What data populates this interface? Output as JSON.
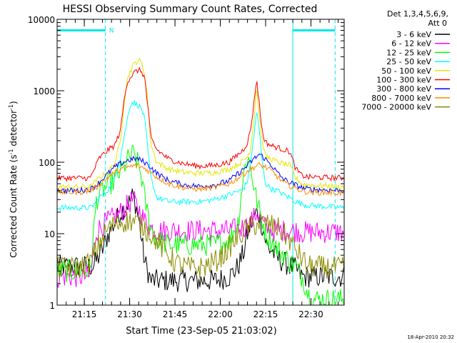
{
  "chart_data": {
    "type": "line",
    "title": "HESSI Observing Summary Count Rates, Corrected",
    "xlabel": "Start Time (23-Sep-05 21:03:02)",
    "ylabel_main": "Corrected Count Rate (s",
    "ylabel_sup1": "-1",
    "ylabel_mid": " detector",
    "ylabel_sup2": "-1",
    "ylabel_end": ")",
    "yscale": "log",
    "ylim": [
      1,
      10000
    ],
    "y_ticks": [
      {
        "value": 1,
        "label": "1"
      },
      {
        "value": 10,
        "label": "10"
      },
      {
        "value": 100,
        "label": "100"
      },
      {
        "value": 1000,
        "label": "1000"
      },
      {
        "value": 10000,
        "label": "10000"
      }
    ],
    "xlim": [
      3,
      98
    ],
    "x_ticks": [
      {
        "value": 12,
        "label": "21:15"
      },
      {
        "value": 27,
        "label": "21:30"
      },
      {
        "value": 42,
        "label": "21:45"
      },
      {
        "value": 57,
        "label": "22:00"
      },
      {
        "value": 72,
        "label": "22:15"
      },
      {
        "value": 87,
        "label": "22:30"
      }
    ],
    "night_bars": [
      {
        "x_start": 3,
        "x_end": 19,
        "y": 7000,
        "label": "N"
      },
      {
        "x_start": 81,
        "x_end": 95,
        "y": 7000,
        "label": ""
      }
    ],
    "vlines_solid": [
      3,
      81
    ],
    "vlines_dashed": [
      19,
      95
    ],
    "vline_color": "#00e6e6",
    "legend_header_1": "Det 1,3,4,5,6,9,",
    "legend_header_2": "Att 0",
    "legend_position": "right",
    "series": [
      {
        "name": "3 - 6 keV",
        "color": "#000000",
        "x": [
          15,
          18,
          20,
          22,
          24,
          26,
          27,
          28,
          29,
          30,
          31,
          32,
          33,
          34,
          36,
          40,
          45,
          50,
          55,
          60,
          63,
          65,
          66,
          67,
          68,
          69,
          70,
          71,
          72,
          73,
          74,
          75,
          76,
          78,
          80,
          82,
          84
        ],
        "y": [
          3.5,
          6,
          10,
          14,
          20,
          25,
          28,
          34,
          26,
          16,
          8,
          4,
          3,
          2.2,
          2.2,
          2.2,
          2.2,
          2.2,
          2.2,
          2.5,
          3.5,
          6,
          10,
          13,
          16,
          20,
          18,
          12,
          8,
          6,
          6,
          5,
          4.5,
          4,
          3.5,
          3.2,
          2.5
        ]
      },
      {
        "name": "6 - 12 keV",
        "color": "#ff00ff",
        "x": [
          3,
          14,
          16,
          18,
          20,
          22,
          24,
          26,
          28,
          30,
          32,
          34,
          36,
          40,
          45,
          50,
          55,
          60,
          62,
          64,
          66,
          68,
          69,
          70,
          71,
          72,
          74,
          76,
          78,
          80,
          82,
          84
        ],
        "y": [
          2.5,
          2.5,
          11,
          13,
          15,
          17,
          20,
          24,
          30,
          22,
          15,
          12,
          11,
          11,
          11,
          11,
          11,
          11,
          11.5,
          12,
          13,
          16,
          20,
          18,
          14,
          12,
          11,
          11,
          11,
          11,
          11,
          10.5
        ]
      },
      {
        "name": "12 - 25 keV",
        "color": "#00ff00",
        "x": [
          3,
          14,
          16,
          18,
          20,
          22,
          24,
          26,
          27,
          28,
          29,
          30,
          31,
          32,
          34,
          36,
          40,
          45,
          50,
          55,
          60,
          63,
          64,
          65,
          66,
          67,
          68,
          69,
          70,
          71,
          72,
          74,
          76,
          78,
          80,
          82,
          84,
          85,
          86,
          87
        ],
        "y": [
          3,
          3,
          30,
          40,
          48,
          55,
          75,
          100,
          120,
          130,
          110,
          90,
          60,
          30,
          12,
          8,
          7,
          7,
          7,
          7,
          8,
          15,
          40,
          80,
          120,
          90,
          50,
          30,
          20,
          15,
          10,
          8,
          6,
          5,
          4,
          3.5,
          2.5,
          2,
          1.5,
          1.2
        ]
      },
      {
        "name": "25 - 50 keV",
        "color": "#00ffff",
        "x": [
          3,
          14,
          15,
          17,
          20,
          22,
          24,
          26,
          27,
          28,
          29,
          30,
          31,
          32,
          33,
          34,
          36,
          40,
          45,
          50,
          55,
          60,
          62,
          64,
          65,
          66,
          67,
          68,
          69,
          70,
          71,
          72,
          74,
          76,
          78,
          80,
          82,
          84,
          86,
          98
        ],
        "y": [
          23,
          23,
          25,
          32,
          42,
          60,
          120,
          350,
          600,
          700,
          650,
          620,
          550,
          400,
          150,
          60,
          32,
          28,
          28,
          28,
          30,
          35,
          38,
          40,
          45,
          55,
          100,
          200,
          550,
          250,
          90,
          50,
          42,
          40,
          35,
          32,
          28,
          26,
          25,
          23
        ]
      },
      {
        "name": "50 - 100 keV",
        "color": "#e6e600",
        "x": [
          3,
          14,
          15,
          17,
          20,
          22,
          24,
          25,
          26,
          27,
          28,
          29,
          30,
          31,
          32,
          33,
          34,
          36,
          40,
          45,
          50,
          55,
          60,
          62,
          64,
          65,
          66,
          67,
          68,
          69,
          70,
          71,
          72,
          74,
          76,
          78,
          80,
          82,
          84,
          86,
          98
        ],
        "y": [
          45,
          45,
          50,
          60,
          75,
          95,
          200,
          600,
          1300,
          1800,
          2200,
          2500,
          2700,
          2400,
          1700,
          700,
          180,
          100,
          80,
          72,
          70,
          72,
          80,
          90,
          100,
          110,
          120,
          150,
          350,
          1200,
          400,
          180,
          120,
          110,
          100,
          95,
          90,
          60,
          50,
          48,
          45
        ]
      },
      {
        "name": "100 - 300 keV",
        "color": "#ff0000",
        "x": [
          3,
          14,
          15,
          17,
          20,
          22,
          24,
          25,
          26,
          27,
          28,
          29,
          30,
          31,
          32,
          33,
          34,
          36,
          40,
          45,
          50,
          55,
          60,
          62,
          64,
          65,
          66,
          67,
          68,
          69,
          70,
          71,
          72,
          74,
          76,
          78,
          80,
          82,
          84,
          86,
          98
        ],
        "y": [
          60,
          60,
          75,
          115,
          150,
          170,
          280,
          650,
          1250,
          1500,
          1700,
          1850,
          1950,
          1850,
          1500,
          600,
          220,
          150,
          110,
          95,
          88,
          90,
          100,
          120,
          140,
          160,
          190,
          280,
          600,
          1500,
          600,
          250,
          190,
          170,
          160,
          150,
          140,
          80,
          65,
          62,
          60
        ]
      },
      {
        "name": "300 - 800 keV",
        "color": "#0000ff",
        "x": [
          3,
          10,
          14,
          16,
          18,
          20,
          22,
          24,
          26,
          28,
          29,
          30,
          32,
          34,
          36,
          40,
          45,
          50,
          55,
          60,
          62,
          64,
          66,
          68,
          70,
          72,
          74,
          76,
          78,
          80,
          82,
          84,
          86,
          98
        ],
        "y": [
          40,
          40,
          42,
          48,
          58,
          70,
          85,
          95,
          105,
          110,
          112,
          110,
          100,
          85,
          70,
          55,
          48,
          46,
          48,
          55,
          65,
          75,
          90,
          110,
          130,
          110,
          90,
          70,
          58,
          52,
          48,
          44,
          42,
          40
        ]
      },
      {
        "name": "800 - 7000 keV",
        "color": "#ff8c00",
        "x": [
          3,
          10,
          14,
          16,
          18,
          20,
          22,
          24,
          26,
          28,
          29,
          30,
          32,
          34,
          36,
          40,
          45,
          50,
          55,
          60,
          62,
          64,
          66,
          68,
          70,
          72,
          74,
          76,
          78,
          80,
          82,
          84,
          86,
          98
        ],
        "y": [
          38,
          38,
          40,
          45,
          53,
          62,
          72,
          80,
          85,
          88,
          90,
          88,
          82,
          72,
          62,
          50,
          44,
          42,
          44,
          50,
          57,
          65,
          75,
          85,
          92,
          85,
          75,
          62,
          52,
          47,
          43,
          40,
          38,
          37
        ]
      },
      {
        "name": "7000 - 20000 keV",
        "color": "#8b8b00",
        "x": [
          3,
          10,
          14,
          16,
          18,
          20,
          22,
          24,
          26,
          28,
          30,
          32,
          34,
          36,
          38,
          40,
          42,
          45,
          48,
          50,
          52,
          55,
          58,
          60,
          62,
          64,
          66,
          68,
          70,
          72,
          74,
          76,
          78,
          80,
          82,
          84,
          86,
          98
        ],
        "y": [
          3.3,
          3.3,
          4,
          6,
          9,
          12,
          13.5,
          14.5,
          15,
          15,
          14,
          12,
          10,
          8,
          6,
          5,
          4,
          3.5,
          3.3,
          3.3,
          3.5,
          4,
          5,
          6.5,
          8,
          10,
          12,
          13,
          14,
          14,
          13,
          12,
          10,
          8,
          6,
          4.5,
          3.5,
          3.3
        ]
      }
    ]
  },
  "footer_date": "18-Apr-2010 20:32"
}
